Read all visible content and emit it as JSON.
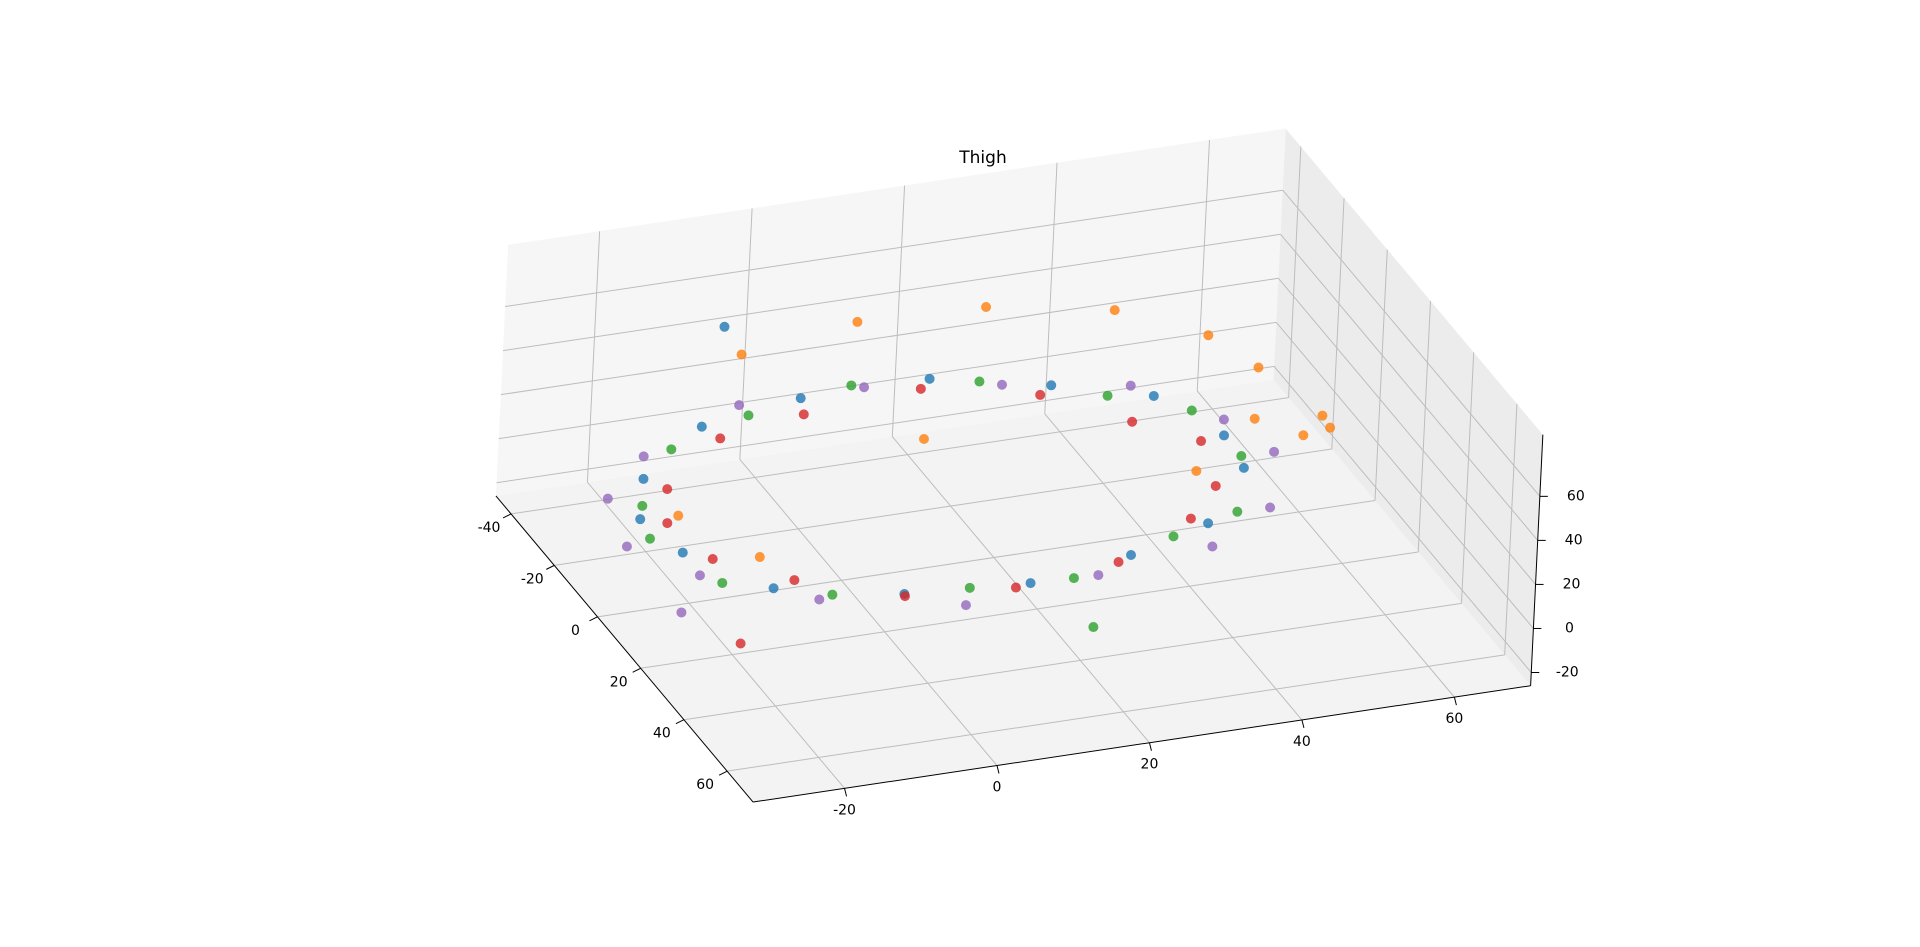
{
  "chart_data": {
    "type": "scatter3d",
    "title": "Thigh",
    "xlim": [
      -47,
      72
    ],
    "ylim": [
      -32,
      70
    ],
    "zlim": [
      -26,
      88
    ],
    "xticks": [
      -40,
      -20,
      0,
      20,
      40,
      60
    ],
    "yticks": [
      -20,
      0,
      20,
      40,
      60
    ],
    "zticks": [
      -20,
      0,
      20,
      40,
      60
    ],
    "grid": true,
    "series": [
      {
        "color": "#1f77b4",
        "x": [
          53,
          50,
          40,
          28,
          12,
          -3,
          -15,
          -22,
          -25,
          -18,
          -6,
          10,
          26,
          40,
          51,
          -40
        ],
        "y": [
          9,
          23,
          36,
          44,
          46,
          41,
          31,
          17,
          1,
          -14,
          -25,
          -30,
          -29,
          -21,
          -7,
          -5
        ],
        "z": [
          30,
          32,
          28,
          35,
          30,
          33,
          29,
          31,
          27,
          30,
          26,
          29,
          32,
          28,
          31,
          45
        ]
      },
      {
        "color": "#ff7f0e",
        "x": [
          47,
          35,
          19,
          3,
          -12,
          -22,
          -25,
          -22,
          50,
          48,
          45,
          30,
          10,
          0
        ],
        "y": [
          32,
          43,
          48,
          46,
          38,
          24,
          8,
          -8,
          45,
          48,
          50,
          -20,
          -25,
          10
        ],
        "z": [
          62,
          66,
          68,
          65,
          63,
          60,
          58,
          55,
          75,
          80,
          70,
          30,
          28,
          33
        ]
      },
      {
        "color": "#2ca02c",
        "x": [
          52,
          45,
          36,
          20,
          4,
          -10,
          -20,
          -23,
          -21,
          -11,
          4,
          18,
          34,
          46,
          53,
          45
        ],
        "y": [
          15,
          30,
          41,
          46,
          44,
          37,
          23,
          7,
          -7,
          -20,
          -28,
          -31,
          -26,
          -15,
          1,
          20
        ],
        "z": [
          28,
          31,
          26,
          30,
          33,
          27,
          29,
          32,
          28,
          31,
          27,
          30,
          26,
          29,
          32,
          -5
        ]
      },
      {
        "color": "#d62728",
        "x": [
          50,
          48,
          39,
          26,
          12,
          -2,
          -13,
          -19,
          -20,
          -13,
          -2,
          12,
          26,
          39,
          48,
          40
        ],
        "y": [
          8,
          22,
          34,
          41,
          43,
          38,
          29,
          15,
          0,
          -13,
          -23,
          -27,
          -25,
          -18,
          -6,
          -25
        ],
        "z": [
          25,
          27,
          30,
          26,
          29,
          24,
          28,
          31,
          26,
          30,
          25,
          28,
          27,
          29,
          26,
          5
        ]
      },
      {
        "color": "#9467bd",
        "x": [
          56,
          49,
          37,
          21,
          5,
          -10,
          -20,
          -24,
          -22,
          -13,
          2,
          18,
          34,
          47,
          55,
          30
        ],
        "y": [
          17,
          34,
          45,
          50,
          48,
          40,
          26,
          9,
          -8,
          -23,
          -32,
          -34,
          -29,
          -17,
          0,
          -30
        ],
        "z": [
          33,
          29,
          27,
          31,
          28,
          30,
          26,
          29,
          32,
          27,
          30,
          28,
          31,
          29,
          27,
          10
        ]
      }
    ]
  }
}
